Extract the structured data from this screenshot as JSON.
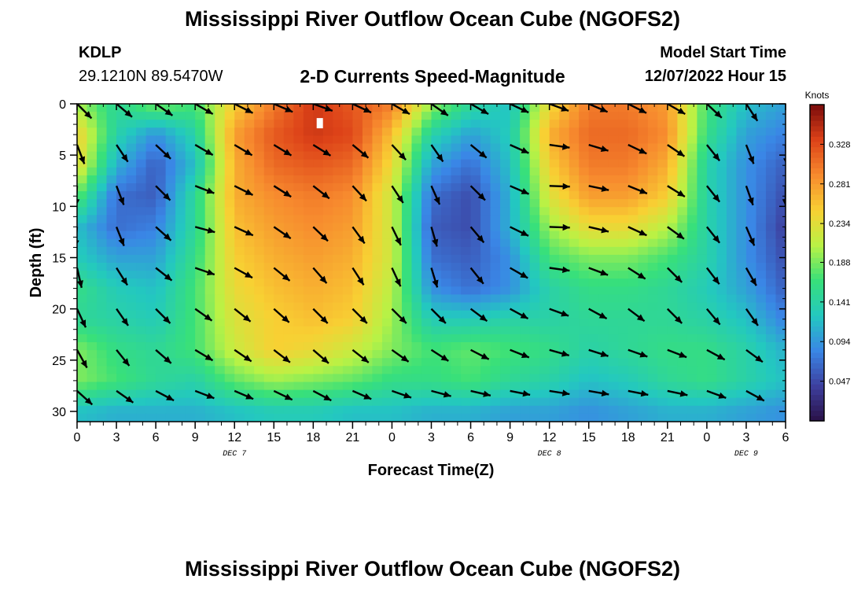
{
  "header": {
    "title": "Mississippi River Outflow Ocean Cube (NGOFS2)",
    "station_id": "KDLP",
    "coordinates": "29.1210N  89.5470W",
    "subtitle": "2-D Currents Speed-Magnitude",
    "model_start_label": "Model Start Time",
    "model_start_value": "12/07/2022 Hour 15"
  },
  "footer": {
    "title": "Mississippi River Outflow Ocean Cube (NGOFS2)"
  },
  "chart_data": {
    "type": "heatmap",
    "xlabel": "Forecast Time(Z)",
    "ylabel": "Depth (ft)",
    "x_tick_labels": [
      "0",
      "3",
      "6",
      "9",
      "12",
      "15",
      "18",
      "21",
      "0",
      "3",
      "6",
      "9",
      "12",
      "15",
      "18",
      "21",
      "0",
      "3",
      "6"
    ],
    "x_range_hours": [
      0,
      54
    ],
    "day_labels": [
      {
        "label": "DEC 7",
        "hour": 12
      },
      {
        "label": "DEC 8",
        "hour": 36
      },
      {
        "label": "DEC 9",
        "hour": 51
      }
    ],
    "y_ticks": [
      0,
      5,
      10,
      15,
      20,
      25,
      30
    ],
    "y_tick_labels": [
      "0",
      "5",
      "10",
      "15",
      "20",
      "25",
      "30"
    ],
    "ylim": [
      0,
      31
    ],
    "y_inverted": true,
    "colorbar": {
      "unit": "Knots",
      "ticks": [
        0.047,
        0.094,
        0.141,
        0.188,
        0.234,
        0.281,
        0.328
      ],
      "tick_labels": [
        "0.047",
        "0.094",
        "0.141",
        "0.188",
        "0.234",
        "0.281",
        "0.328"
      ],
      "range": [
        0.0,
        0.375
      ],
      "colors": [
        "#2a1146",
        "#3d3f9e",
        "#3a86e6",
        "#23c8c0",
        "#38e07a",
        "#b9f245",
        "#f8d033",
        "#f78a2e",
        "#dd4218",
        "#7a0b0b"
      ]
    },
    "speed_grid": {
      "hours": [
        0,
        3,
        6,
        9,
        12,
        15,
        18,
        21,
        24,
        27,
        30,
        33,
        36,
        39,
        42,
        45,
        48,
        51,
        54
      ],
      "depths": [
        0,
        3,
        6,
        9,
        12,
        15,
        18,
        21,
        24,
        27,
        30
      ],
      "values": [
        [
          0.2,
          0.15,
          0.19,
          0.17,
          0.25,
          0.3,
          0.34,
          0.32,
          0.3,
          0.2,
          0.15,
          0.12,
          0.24,
          0.3,
          0.3,
          0.28,
          0.17,
          0.12,
          0.1
        ],
        [
          0.25,
          0.14,
          0.09,
          0.14,
          0.28,
          0.32,
          0.34,
          0.33,
          0.26,
          0.14,
          0.1,
          0.13,
          0.27,
          0.31,
          0.31,
          0.29,
          0.16,
          0.1,
          0.08
        ],
        [
          0.24,
          0.11,
          0.06,
          0.12,
          0.27,
          0.31,
          0.32,
          0.31,
          0.24,
          0.1,
          0.07,
          0.12,
          0.25,
          0.3,
          0.3,
          0.27,
          0.14,
          0.09,
          0.06
        ],
        [
          0.18,
          0.07,
          0.06,
          0.15,
          0.27,
          0.29,
          0.3,
          0.29,
          0.22,
          0.07,
          0.05,
          0.11,
          0.23,
          0.28,
          0.28,
          0.25,
          0.14,
          0.09,
          0.05
        ],
        [
          0.12,
          0.07,
          0.08,
          0.15,
          0.26,
          0.28,
          0.29,
          0.28,
          0.22,
          0.06,
          0.05,
          0.11,
          0.2,
          0.24,
          0.24,
          0.21,
          0.14,
          0.09,
          0.04
        ],
        [
          0.13,
          0.1,
          0.1,
          0.16,
          0.25,
          0.27,
          0.28,
          0.27,
          0.22,
          0.07,
          0.06,
          0.09,
          0.17,
          0.19,
          0.19,
          0.17,
          0.14,
          0.09,
          0.05
        ],
        [
          0.16,
          0.13,
          0.12,
          0.17,
          0.24,
          0.26,
          0.27,
          0.26,
          0.21,
          0.09,
          0.07,
          0.09,
          0.14,
          0.16,
          0.16,
          0.15,
          0.13,
          0.1,
          0.06
        ],
        [
          0.15,
          0.14,
          0.13,
          0.17,
          0.23,
          0.25,
          0.26,
          0.25,
          0.2,
          0.13,
          0.13,
          0.14,
          0.14,
          0.15,
          0.15,
          0.15,
          0.14,
          0.12,
          0.08
        ],
        [
          0.19,
          0.16,
          0.15,
          0.17,
          0.22,
          0.25,
          0.24,
          0.22,
          0.19,
          0.17,
          0.18,
          0.17,
          0.16,
          0.14,
          0.15,
          0.16,
          0.16,
          0.14,
          0.11
        ],
        [
          0.19,
          0.17,
          0.15,
          0.14,
          0.18,
          0.2,
          0.19,
          0.18,
          0.16,
          0.16,
          0.17,
          0.15,
          0.14,
          0.12,
          0.13,
          0.15,
          0.16,
          0.14,
          0.12
        ],
        [
          0.12,
          0.11,
          0.11,
          0.11,
          0.12,
          0.13,
          0.13,
          0.12,
          0.12,
          0.11,
          0.11,
          0.1,
          0.1,
          0.09,
          0.1,
          0.11,
          0.11,
          0.1,
          0.09
        ]
      ]
    },
    "current_vectors": {
      "hours": [
        0,
        9,
        18,
        27,
        36,
        45,
        54
      ],
      "depths": [
        0,
        5,
        10,
        15,
        20,
        25,
        30
      ],
      "directions_deg": [
        [
          135,
          120,
          110,
          125,
          110,
          120,
          160
        ],
        [
          165,
          120,
          125,
          150,
          95,
          125,
          180
        ],
        [
          195,
          105,
          130,
          160,
          90,
          120,
          180
        ],
        [
          170,
          105,
          140,
          170,
          95,
          135,
          160
        ],
        [
          155,
          125,
          135,
          135,
          110,
          135,
          150
        ],
        [
          150,
          120,
          130,
          120,
          105,
          105,
          130
        ],
        [
          120,
          105,
          110,
          95,
          95,
          100,
          125
        ]
      ]
    },
    "marker": {
      "hour": 18.5,
      "depth": 2
    }
  }
}
